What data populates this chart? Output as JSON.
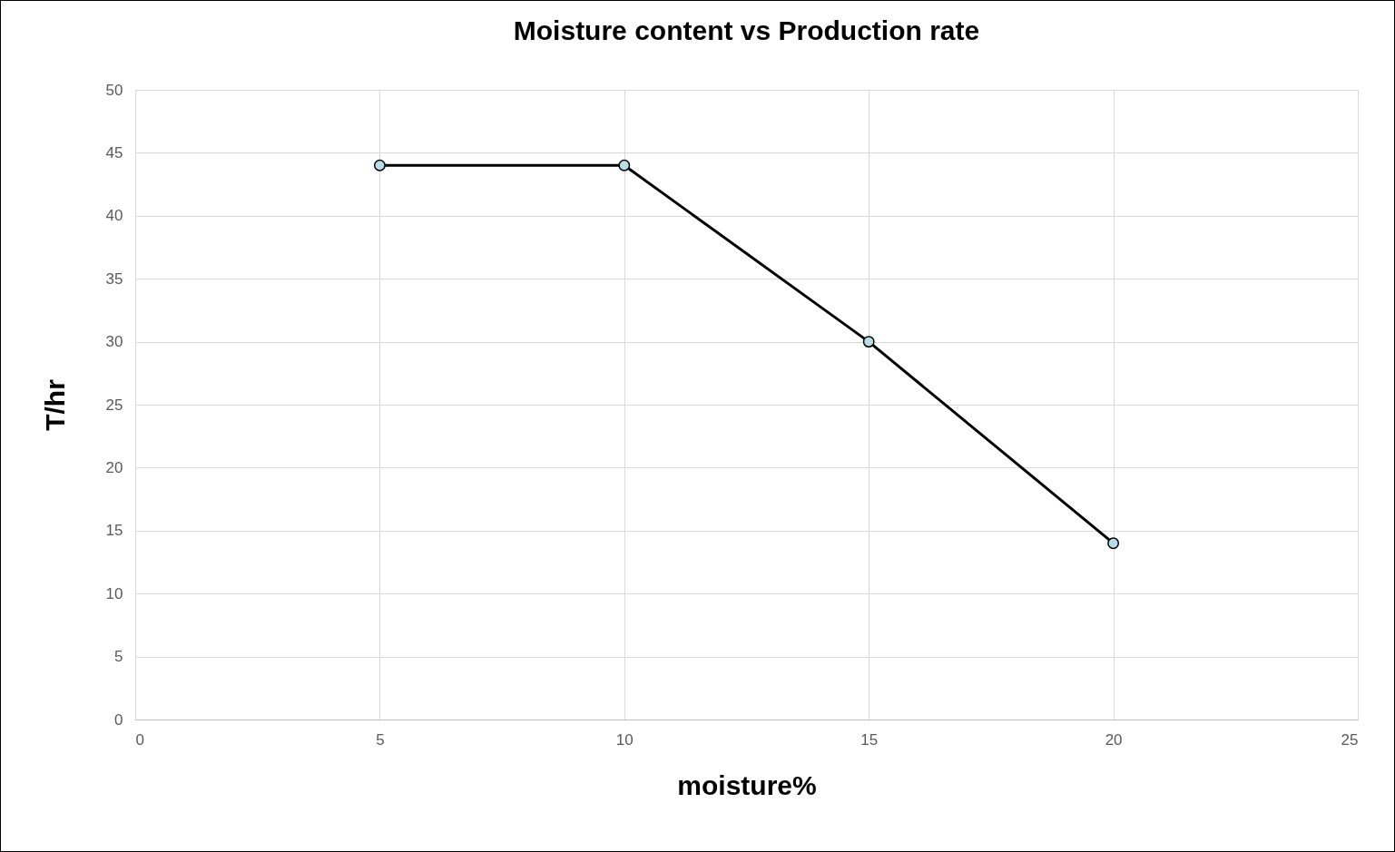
{
  "chart_data": {
    "type": "line",
    "title": "Moisture content vs Production rate",
    "xlabel": "moisture%",
    "ylabel": "T/hr",
    "x": [
      5,
      10,
      15,
      20
    ],
    "series": [
      {
        "color": "#000000",
        "values": [
          44,
          44,
          30,
          14
        ]
      }
    ],
    "xlim": [
      0,
      25
    ],
    "xticks": [
      0,
      5,
      10,
      15,
      20,
      25
    ],
    "ylim": [
      0,
      50
    ],
    "yticks": [
      0,
      5,
      10,
      15,
      20,
      25,
      30,
      35,
      40,
      45,
      50
    ],
    "grid": true,
    "marker": "circle",
    "line_style": "solid"
  }
}
